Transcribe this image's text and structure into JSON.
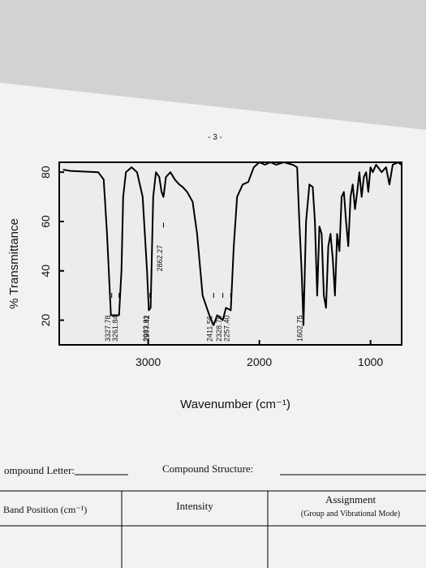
{
  "page_number": "- 3 -",
  "chart_data": {
    "type": "line",
    "ylabel": "% Transmittance",
    "xlabel": "Wavenumber (cm⁻¹)",
    "xlim": [
      3800,
      720
    ],
    "xticks": [
      3000,
      2000,
      1000
    ],
    "ylim": [
      10,
      84
    ],
    "yticks": [
      20,
      40,
      60,
      80
    ],
    "color": "#000000",
    "x": [
      3766,
      3700,
      3450,
      3400,
      3370,
      3335,
      3300,
      3262,
      3240,
      3225,
      3200,
      3150,
      3100,
      3050,
      3010,
      2994,
      2978,
      2970,
      2955,
      2930,
      2900,
      2880,
      2862,
      2840,
      2800,
      2760,
      2720,
      2690,
      2650,
      2600,
      2560,
      2510,
      2450,
      2411,
      2380,
      2329,
      2300,
      2257,
      2230,
      2200,
      2150,
      2100,
      2050,
      2000,
      1950,
      1900,
      1850,
      1780,
      1700,
      1660,
      1640,
      1620,
      1603,
      1580,
      1550,
      1520,
      1500,
      1480,
      1460,
      1440,
      1420,
      1400,
      1380,
      1360,
      1340,
      1320,
      1300,
      1280,
      1260,
      1240,
      1220,
      1200,
      1180,
      1160,
      1140,
      1120,
      1100,
      1080,
      1060,
      1040,
      1020,
      1000,
      980,
      950,
      900,
      860,
      830,
      800,
      750,
      725
    ],
    "values": [
      81,
      80.5,
      80,
      77,
      55,
      22,
      22,
      22,
      40,
      70,
      80,
      82,
      80,
      70,
      40,
      24,
      25,
      40,
      70,
      80,
      78,
      72,
      70,
      78,
      80,
      77,
      75,
      74,
      72,
      68,
      55,
      30,
      22,
      18,
      22,
      20,
      25,
      24,
      50,
      70,
      75,
      76,
      82,
      84,
      83,
      84,
      83,
      84,
      83,
      82,
      60,
      40,
      18,
      60,
      75,
      74,
      60,
      30,
      58,
      55,
      30,
      25,
      50,
      55,
      45,
      30,
      55,
      48,
      70,
      72,
      60,
      50,
      70,
      75,
      65,
      72,
      80,
      70,
      78,
      80,
      72,
      82,
      80,
      83,
      80,
      82,
      75,
      83,
      84,
      83
    ],
    "annotations": [
      {
        "label": "3327.78",
        "x": 3327.78
      },
      {
        "label": "3261.84",
        "x": 3261.84
      },
      {
        "label": "2983.91",
        "x": 2983.91
      },
      {
        "label": "2977.42",
        "x": 2977.42
      },
      {
        "label": "2862.27",
        "x": 2862.27
      },
      {
        "label": "2411.56",
        "x": 2411.56
      },
      {
        "label": "2328.79",
        "x": 2328.79
      },
      {
        "label": "2257.40",
        "x": 2257.4
      },
      {
        "label": "1602.75",
        "x": 1602.75
      }
    ]
  },
  "form": {
    "compound_letter": "ompound Letter:",
    "compound_structure": "Compound Structure:",
    "table": {
      "headers": [
        "Band Position (cm⁻¹)",
        "Intensity",
        "Assignment"
      ],
      "assignment_note": "(Group and Vibrational Mode)"
    }
  }
}
